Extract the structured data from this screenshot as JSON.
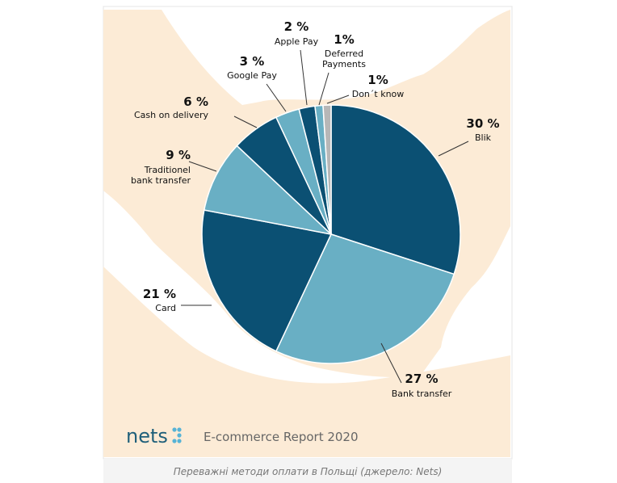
{
  "chart_data": {
    "type": "pie",
    "slices": [
      {
        "label": "Blik",
        "value": 30,
        "value_label": "30 %",
        "color": "#0b5073"
      },
      {
        "label": "Bank transfer",
        "value": 27,
        "value_label": "27 %",
        "color": "#69afc4"
      },
      {
        "label": "Card",
        "value": 21,
        "value_label": "21 %",
        "color": "#0b5073"
      },
      {
        "label_lines": [
          "Traditionel",
          "bank transfer"
        ],
        "value": 9,
        "value_label": "9 %",
        "color": "#69afc4"
      },
      {
        "label": "Cash on delivery",
        "value": 6,
        "value_label": "6 %",
        "color": "#0b5073"
      },
      {
        "label": "Google Pay",
        "value": 3,
        "value_label": "3 %",
        "color": "#69afc4"
      },
      {
        "label": "Apple Pay",
        "value": 2,
        "value_label": "2 %",
        "color": "#0b5073"
      },
      {
        "label_lines": [
          "Deferred",
          "Payments"
        ],
        "value": 1,
        "value_label": "1%",
        "color": "#69afc4"
      },
      {
        "label": "Don´t know",
        "value": 1,
        "value_label": "1%",
        "color": "#b7b7b7"
      }
    ]
  },
  "brand": {
    "name": "nets",
    "accent_color": "#57b3d6"
  },
  "report_title": "E-commerce Report 2020",
  "caption": "Переважні методи оплати в Польщі (джерело: Nets)",
  "colors": {
    "background_sea": "#ffffff",
    "background_land": "#fcebd6"
  }
}
